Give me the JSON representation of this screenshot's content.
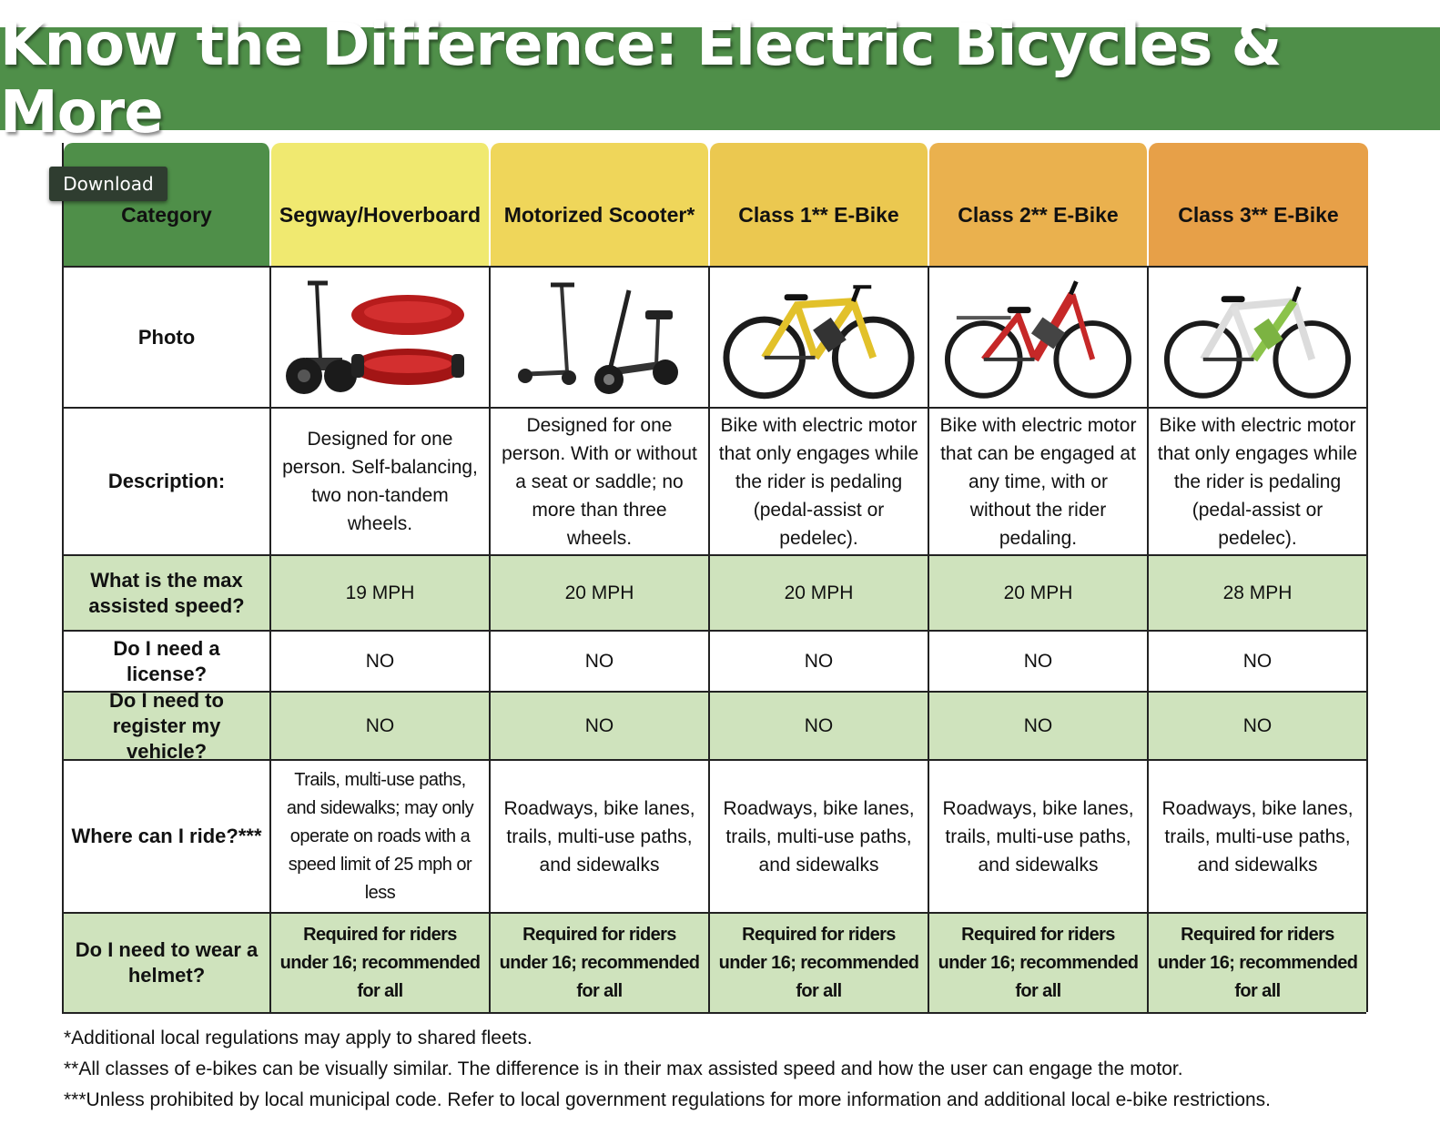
{
  "title": "Know the Difference: Electric Bicycles & More",
  "download_label": "Download",
  "colors": {
    "banner": "#4f8f49",
    "header_category": "#4f8f49",
    "header_segway": "#f0e970",
    "header_scooter": "#efd65a",
    "header_class1": "#ebc850",
    "header_class2": "#eab14e",
    "header_class3": "#e7a048",
    "row_highlight": "#cfe3bd"
  },
  "header": {
    "category_label": "Category",
    "columns": [
      "Segway/Hoverboard",
      "Motorized Scooter*",
      "Class 1** E-Bike",
      "Class 2** E-Bike",
      "Class 3** E-Bike"
    ]
  },
  "rows": {
    "photo": {
      "label": "Photo",
      "icons": [
        "segway-and-hoverboard-photo",
        "motorized-scooter-photo",
        "yellow-class1-ebike-photo",
        "red-class2-ebike-photo",
        "white-green-class3-ebike-photo"
      ]
    },
    "description": {
      "label": "Description:",
      "values": [
        "Designed for one person. Self-balancing, two non-tandem wheels.",
        "Designed for one person. With or without a seat or saddle; no more than three wheels.",
        "Bike with electric motor that only engages while the rider is pedaling (pedal-assist or pedelec).",
        "Bike with electric motor that can be engaged at any time, with or without the rider pedaling.",
        "Bike with electric motor that only engages while the rider is pedaling (pedal-assist or pedelec)."
      ]
    },
    "speed": {
      "label": "What is the max assisted speed?",
      "values": [
        "19 MPH",
        "20 MPH",
        "20 MPH",
        "20 MPH",
        "28 MPH"
      ]
    },
    "license": {
      "label": "Do I need a license?",
      "values": [
        "NO",
        "NO",
        "NO",
        "NO",
        "NO"
      ]
    },
    "register": {
      "label": "Do I need to register my vehicle?",
      "values": [
        "NO",
        "NO",
        "NO",
        "NO",
        "NO"
      ]
    },
    "ride": {
      "label": "Where can I ride?***",
      "values": [
        "Trails, multi-use paths, and sidewalks; may only operate on roads with a speed limit of 25 mph or less",
        "Roadways, bike lanes, trails, multi-use paths, and sidewalks",
        "Roadways, bike lanes, trails, multi-use paths, and sidewalks",
        "Roadways, bike lanes, trails, multi-use paths, and sidewalks",
        "Roadways, bike lanes, trails, multi-use paths, and sidewalks"
      ]
    },
    "helmet": {
      "label": "Do I need to wear a helmet?",
      "values": [
        "Required for riders under 16; recommended for all",
        "Required for riders under 16; recommended for all",
        "Required for riders under 16; recommended for all",
        "Required for riders under 16; recommended for all",
        "Required for riders under 16; recommended for all"
      ]
    }
  },
  "footnotes": [
    "*Additional local regulations may apply to shared fleets.",
    "**All classes of e-bikes can be visually similar. The difference is in their max assisted speed and how the user can engage the motor.",
    "***Unless prohibited by local municipal code. Refer to local government regulations for more information and additional local e-bike restrictions."
  ]
}
